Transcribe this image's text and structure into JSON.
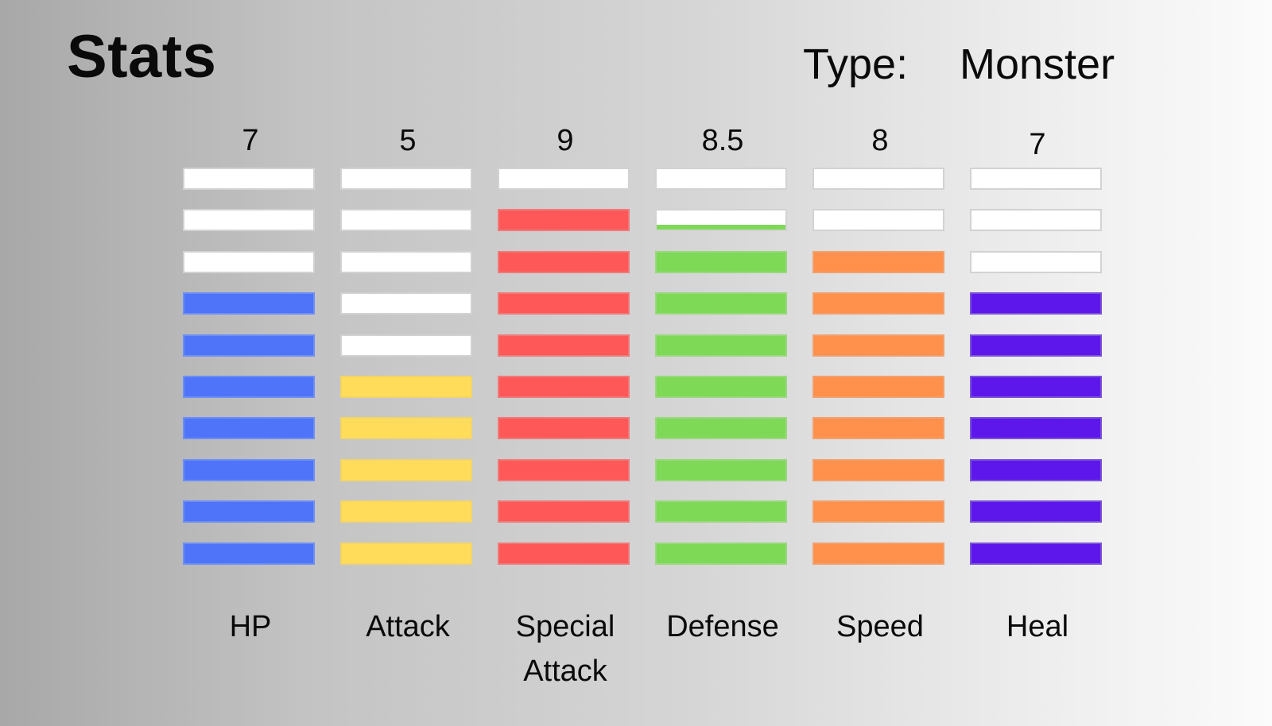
{
  "header": {
    "title": "Stats",
    "type_label": "Type:",
    "type_value": "Monster"
  },
  "stats": [
    {
      "name": "HP",
      "value_text": "7",
      "value": 7,
      "color": "#4f74fa",
      "border": "#6d8ef5"
    },
    {
      "name": "Attack",
      "value_text": "5",
      "value": 5,
      "color": "#ffdd5a",
      "border": "#f2d46a"
    },
    {
      "name": "Special Attack",
      "value_text": "9",
      "value": 9,
      "color": "#ff5858",
      "border": "#f07a7a"
    },
    {
      "name": "Defense",
      "value_text": "8.5",
      "value": 8.5,
      "color": "#7ed957",
      "border": "#9ad87e"
    },
    {
      "name": "Speed",
      "value_text": "8",
      "value": 8,
      "color": "#ff914d",
      "border": "#f2a06e"
    },
    {
      "name": "Heal",
      "value_text": "7",
      "value": 7,
      "color": "#5e17eb",
      "border": "#7a52d8"
    }
  ],
  "max_value": 10
}
